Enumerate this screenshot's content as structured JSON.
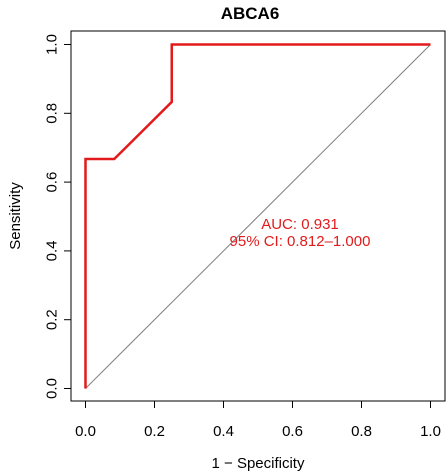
{
  "chart_data": {
    "type": "line",
    "title": "ABCA6",
    "xlabel": "1 − Specificity",
    "ylabel": "Sensitivity",
    "xlim": [
      0,
      1
    ],
    "ylim": [
      0,
      1
    ],
    "x_ticks": [
      "0.0",
      "0.2",
      "0.4",
      "0.6",
      "0.8",
      "1.0"
    ],
    "y_ticks": [
      "0.0",
      "0.2",
      "0.4",
      "0.6",
      "0.8",
      "1.0"
    ],
    "grid": false,
    "series": [
      {
        "color": "#e31a1c",
        "x": [
          0.0,
          0.0,
          0.0833,
          0.25,
          0.25,
          1.0
        ],
        "y": [
          0.0,
          0.667,
          0.667,
          0.833,
          1.0,
          1.0
        ]
      }
    ],
    "reference_line": {
      "color": "#808080",
      "x": [
        0,
        1
      ],
      "y": [
        0,
        1
      ]
    },
    "annotations": [
      {
        "text": "AUC: 0.931",
        "color": "#e31a1c"
      },
      {
        "text": "95% CI: 0.812–1.000",
        "color": "#e31a1c"
      }
    ]
  }
}
